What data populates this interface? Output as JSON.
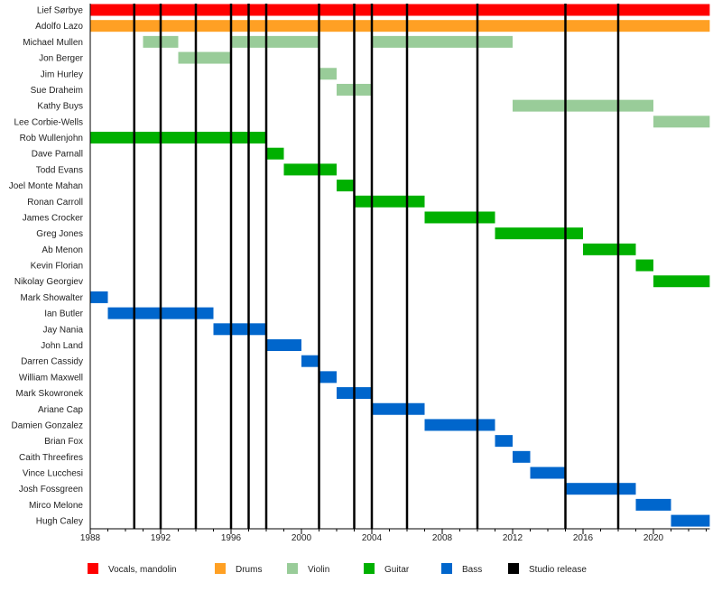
{
  "chart_data": {
    "type": "timeline",
    "xlim": [
      1988,
      2023.2
    ],
    "x_ticks": [
      1988,
      1992,
      1996,
      2000,
      2004,
      2008,
      2012,
      2016,
      2020
    ],
    "minor_tick_step": 1,
    "grid": false,
    "legend_placement": "bottom",
    "roles": [
      {
        "name": "Vocals, mandolin",
        "color": "#ff0000"
      },
      {
        "name": "Drums",
        "color": "#ffa024"
      },
      {
        "name": "Violin",
        "color": "#99cc99"
      },
      {
        "name": "Guitar",
        "color": "#00b000"
      },
      {
        "name": "Bass",
        "color": "#0066cc"
      },
      {
        "name": "Studio release",
        "color": "#000000"
      }
    ],
    "members": [
      {
        "name": "Lief Sørbye",
        "role": 0,
        "periods": [
          [
            1988,
            2023.2
          ]
        ]
      },
      {
        "name": "Adolfo Lazo",
        "role": 1,
        "periods": [
          [
            1988,
            2023.2
          ]
        ]
      },
      {
        "name": "Michael Mullen",
        "role": 2,
        "periods": [
          [
            1991,
            1993
          ],
          [
            1996,
            2001
          ],
          [
            2004,
            2012
          ]
        ]
      },
      {
        "name": "Jon Berger",
        "role": 2,
        "periods": [
          [
            1993,
            1996
          ]
        ]
      },
      {
        "name": "Jim Hurley",
        "role": 2,
        "periods": [
          [
            2001,
            2002
          ]
        ]
      },
      {
        "name": "Sue Draheim",
        "role": 2,
        "periods": [
          [
            2002,
            2004
          ]
        ]
      },
      {
        "name": "Kathy Buys",
        "role": 2,
        "periods": [
          [
            2012,
            2020
          ]
        ]
      },
      {
        "name": "Lee Corbie-Wells",
        "role": 2,
        "periods": [
          [
            2020,
            2023.2
          ]
        ]
      },
      {
        "name": "Rob Wullenjohn",
        "role": 3,
        "periods": [
          [
            1988,
            1998
          ]
        ]
      },
      {
        "name": "Dave Parnall",
        "role": 3,
        "periods": [
          [
            1998,
            1999
          ]
        ]
      },
      {
        "name": "Todd Evans",
        "role": 3,
        "periods": [
          [
            1999,
            2002
          ]
        ]
      },
      {
        "name": "Joel Monte Mahan",
        "role": 3,
        "periods": [
          [
            2002,
            2003
          ]
        ]
      },
      {
        "name": "Ronan Carroll",
        "role": 3,
        "periods": [
          [
            2003,
            2007
          ]
        ]
      },
      {
        "name": "James Crocker",
        "role": 3,
        "periods": [
          [
            2007,
            2011
          ]
        ]
      },
      {
        "name": "Greg Jones",
        "role": 3,
        "periods": [
          [
            2011,
            2016
          ]
        ]
      },
      {
        "name": "Ab Menon",
        "role": 3,
        "periods": [
          [
            2016,
            2019
          ]
        ]
      },
      {
        "name": "Kevin Florian",
        "role": 3,
        "periods": [
          [
            2019,
            2020
          ]
        ]
      },
      {
        "name": "Nikolay Georgiev",
        "role": 3,
        "periods": [
          [
            2020,
            2023.2
          ]
        ]
      },
      {
        "name": "Mark Showalter",
        "role": 4,
        "periods": [
          [
            1988,
            1989
          ]
        ]
      },
      {
        "name": "Ian Butler",
        "role": 4,
        "periods": [
          [
            1989,
            1995
          ]
        ]
      },
      {
        "name": "Jay Nania",
        "role": 4,
        "periods": [
          [
            1995,
            1998
          ]
        ]
      },
      {
        "name": "John Land",
        "role": 4,
        "periods": [
          [
            1998,
            2000
          ]
        ]
      },
      {
        "name": "Darren Cassidy",
        "role": 4,
        "periods": [
          [
            2000,
            2001
          ]
        ]
      },
      {
        "name": "William Maxwell",
        "role": 4,
        "periods": [
          [
            2001,
            2002
          ]
        ]
      },
      {
        "name": "Mark Skowronek",
        "role": 4,
        "periods": [
          [
            2002,
            2004
          ]
        ]
      },
      {
        "name": "Ariane Cap",
        "role": 4,
        "periods": [
          [
            2004,
            2007
          ]
        ]
      },
      {
        "name": "Damien Gonzalez",
        "role": 4,
        "periods": [
          [
            2007,
            2011
          ]
        ]
      },
      {
        "name": "Brian Fox",
        "role": 4,
        "periods": [
          [
            2011,
            2012
          ]
        ]
      },
      {
        "name": "Caith Threefires",
        "role": 4,
        "periods": [
          [
            2012,
            2013
          ]
        ]
      },
      {
        "name": "Vince Lucchesi",
        "role": 4,
        "periods": [
          [
            2013,
            2015
          ]
        ]
      },
      {
        "name": "Josh Fossgreen",
        "role": 4,
        "periods": [
          [
            2015,
            2019
          ]
        ]
      },
      {
        "name": "Mirco Melone",
        "role": 4,
        "periods": [
          [
            2019,
            2021
          ]
        ]
      },
      {
        "name": "Hugh Caley",
        "role": 4,
        "periods": [
          [
            2021,
            2023.2
          ]
        ]
      }
    ],
    "studio_releases": [
      1990.5,
      1992,
      1994,
      1996,
      1997,
      1998,
      2001,
      2003,
      2004,
      2006,
      2010,
      2015,
      2018
    ]
  }
}
